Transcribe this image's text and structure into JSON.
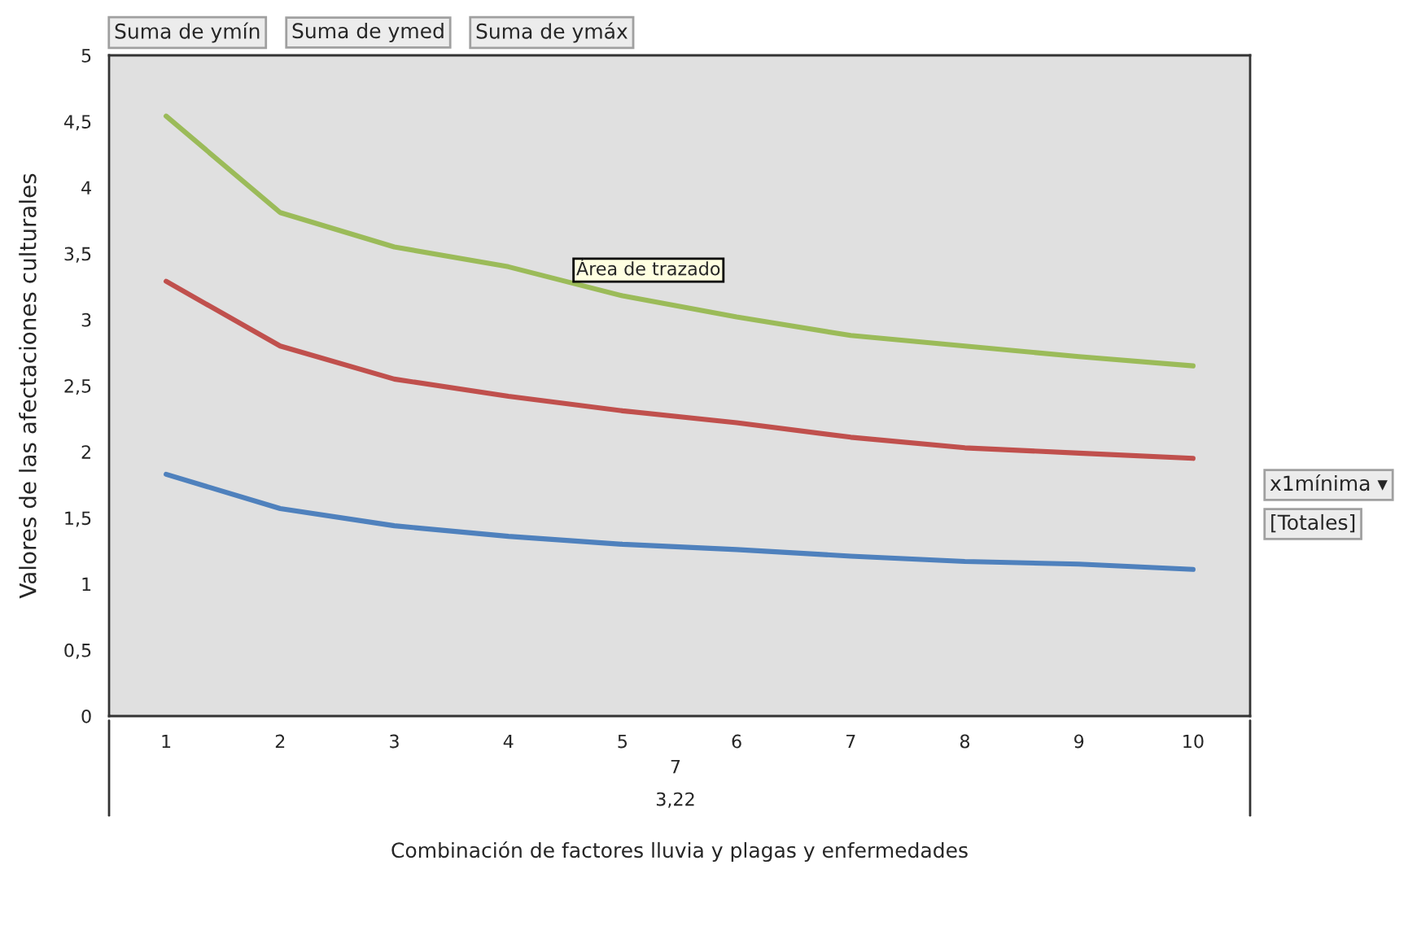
{
  "chart_data": {
    "type": "line",
    "xlabel": "Combinación de factores lluvia y plagas y enfermedades",
    "ylabel": "Valores de las afectaciones culturales",
    "categories": [
      "1",
      "2",
      "3",
      "4",
      "5",
      "6",
      "7",
      "8",
      "9",
      "10"
    ],
    "series": [
      {
        "color": "#4f81bd",
        "values": [
          1.83,
          1.57,
          1.44,
          1.36,
          1.3,
          1.26,
          1.21,
          1.17,
          1.15,
          1.11
        ]
      },
      {
        "color": "#c0504d",
        "values": [
          3.29,
          2.8,
          2.55,
          2.42,
          2.31,
          2.22,
          2.11,
          2.03,
          1.99,
          1.95
        ]
      },
      {
        "color": "#9bbb59",
        "values": [
          4.54,
          3.81,
          3.55,
          3.4,
          3.18,
          3.02,
          2.88,
          2.8,
          2.72,
          2.65
        ]
      }
    ],
    "ylim": [
      0,
      5
    ],
    "yticks": [
      0,
      {
        "value": 0.5,
        "label": "0,5"
      },
      1,
      {
        "value": 1.5,
        "label": "1,5"
      },
      2,
      {
        "value": 2.5,
        "label": "2,5"
      },
      3,
      {
        "value": 3.5,
        "label": "3,5"
      },
      4,
      {
        "value": 4.5,
        "label": "4,5"
      },
      5
    ],
    "grid": false,
    "marker": "none",
    "line_style": "solid",
    "annotations": [
      "Suma de ymín",
      "Suma de ymed",
      "Suma de ymáx",
      "Área de trazado",
      "x1mínima ▾",
      "[Totales]",
      "7",
      "3,22"
    ]
  }
}
